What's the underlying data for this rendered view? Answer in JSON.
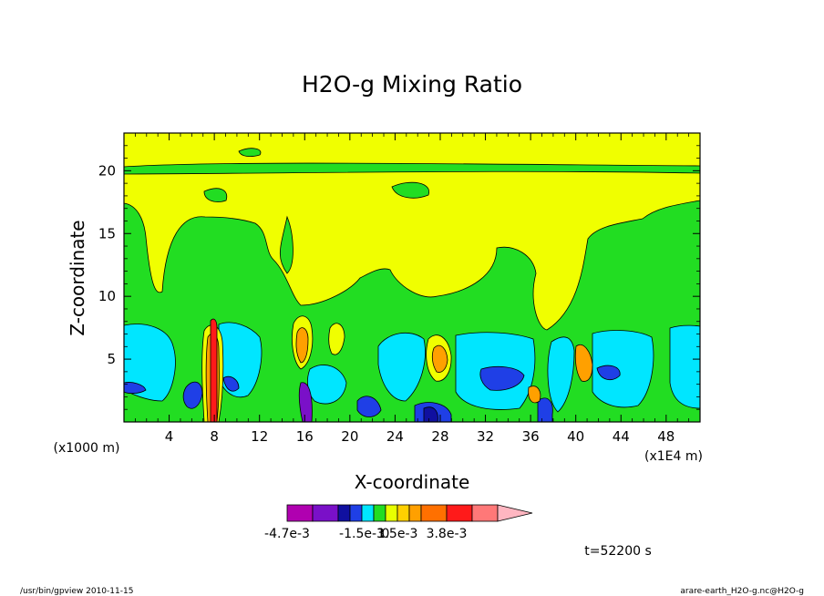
{
  "chart_data": {
    "type": "heatmap",
    "title": "H2O-g Mixing Ratio",
    "xlabel": "X-coordinate",
    "ylabel": "Z-coordinate",
    "x_unit_left": "(x1000 m)",
    "x_unit_right": "(x1E4 m)",
    "xlim": [
      0,
      51
    ],
    "ylim": [
      0,
      23
    ],
    "x_ticks": [
      4,
      8,
      12,
      16,
      20,
      24,
      28,
      32,
      36,
      40,
      44,
      48
    ],
    "y_ticks": [
      5,
      10,
      15,
      20
    ],
    "colorbar": {
      "colors": [
        "#b000b0",
        "#7a10c8",
        "#1010a0",
        "#1f3fe6",
        "#00e6ff",
        "#22dd22",
        "#e8ff00",
        "#ffd000",
        "#ffa000",
        "#ff7000",
        "#ff1a1a",
        "#ff7878",
        "#ffb6c1"
      ],
      "labels": [
        {
          "text": "-4.7e-3",
          "bin": 0
        },
        {
          "text": "-1.5e-3",
          "bin": 4
        },
        {
          "text": "0",
          "bin": 6
        },
        {
          "text": "1.5e-3",
          "bin": 7
        },
        {
          "text": "3.8e-3",
          "bin": 10
        }
      ]
    },
    "time_label": "t=52200 s"
  },
  "footer": {
    "left": "/usr/bin/gpview  2010-11-15",
    "right": "arare-earth_H2O-g.nc@H2O-g"
  },
  "colors": {
    "green": "#22dd22",
    "yellow": "#f0ff00",
    "cyan": "#00e6ff",
    "blue": "#1f3fe6",
    "navy": "#1010a0",
    "orange": "#ffa000",
    "red": "#ff1a1a",
    "purple": "#7a10c8"
  }
}
